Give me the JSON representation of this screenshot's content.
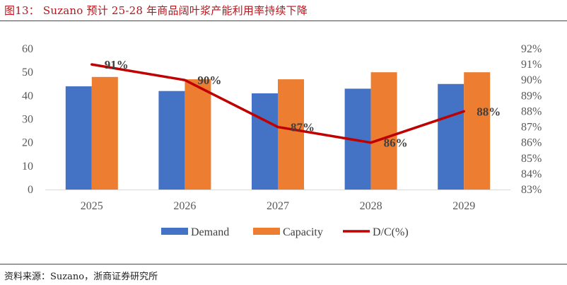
{
  "figure": {
    "title": "图13： Suzano 预计 25-28 年商品阔叶浆产能利用率持续下降",
    "source": "资料来源：Suzano，浙商证券研究所"
  },
  "colors": {
    "demand": "#4472C4",
    "capacity": "#ED7D31",
    "dc": "#C00000",
    "accent": "#b8141b"
  },
  "chart_data": {
    "type": "bar",
    "categories": [
      "2025",
      "2026",
      "2027",
      "2028",
      "2029"
    ],
    "series": [
      {
        "name": "Demand",
        "type": "bar",
        "axis": "left",
        "values": [
          44,
          42,
          41,
          43,
          45
        ]
      },
      {
        "name": "Capacity",
        "type": "bar",
        "axis": "left",
        "values": [
          48,
          47,
          47,
          50,
          50
        ]
      },
      {
        "name": "D/C(%)",
        "type": "line",
        "axis": "right",
        "values": [
          91,
          90,
          87,
          86,
          88
        ],
        "labels": [
          "91%",
          "90%",
          "87%",
          "86%",
          "88%"
        ]
      }
    ],
    "ylim": [
      0,
      60
    ],
    "yticks": [
      0,
      10,
      20,
      30,
      40,
      50,
      60
    ],
    "y2lim": [
      83,
      92
    ],
    "y2ticks": [
      "83%",
      "84%",
      "85%",
      "86%",
      "87%",
      "88%",
      "89%",
      "90%",
      "91%",
      "92%"
    ],
    "legend": "bottom",
    "grid": false
  }
}
